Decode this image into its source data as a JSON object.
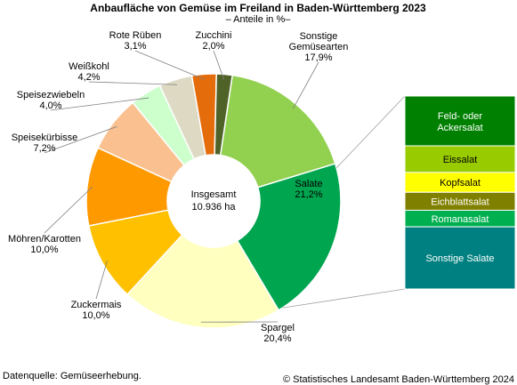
{
  "chart_data": {
    "type": "pie",
    "style": "donut",
    "title": "Anbaufläche von Gemüse im Freiland in Baden-Württemberg 2023",
    "subtitle": "– Anteile in %–",
    "center_label": {
      "line1": "Insgesamt",
      "line2": "10.936 ha"
    },
    "slices": [
      {
        "name": "Sonstige\nGemüsearten",
        "value": 17.9,
        "display": "17,9%",
        "color": "#92d050"
      },
      {
        "name": "Salate",
        "value": 21.2,
        "display": "21,2%",
        "color": "#00a550"
      },
      {
        "name": "Spargel",
        "value": 20.4,
        "display": "20,4%",
        "color": "#ffffc0"
      },
      {
        "name": "Zuckermais",
        "value": 10.0,
        "display": "10,0%",
        "color": "#ffc000"
      },
      {
        "name": "Möhren/Karotten",
        "value": 10.0,
        "display": "10,0%",
        "color": "#ff9900"
      },
      {
        "name": "Speisekürbisse",
        "value": 7.2,
        "display": "7,2%",
        "color": "#fac090"
      },
      {
        "name": "Speisezwiebeln",
        "value": 4.0,
        "display": "4,0%",
        "color": "#ccffcc"
      },
      {
        "name": "Weißkohl",
        "value": 4.2,
        "display": "4,2%",
        "color": "#ddd9c3"
      },
      {
        "name": "Rote Rüben",
        "value": 3.1,
        "display": "3,1%",
        "color": "#e46c0a"
      },
      {
        "name": "Zucchini",
        "value": 2.0,
        "display": "2,0%",
        "color": "#4f6228"
      }
    ],
    "breakdown": {
      "of": "Salate",
      "segments": [
        {
          "name": "Feld- oder\nAckersalat",
          "color": "#008000",
          "text_color": "#ffffff",
          "share": 0.258
        },
        {
          "name": "Eissalat",
          "color": "#99cc00",
          "text_color": "#000000",
          "share": 0.138
        },
        {
          "name": "Kopfsalat",
          "color": "#ffff00",
          "text_color": "#000000",
          "share": 0.103
        },
        {
          "name": "Eichblattsalat",
          "color": "#808000",
          "text_color": "#ffffff",
          "share": 0.093
        },
        {
          "name": "Romanasalat",
          "color": "#00b050",
          "text_color": "#ffffff",
          "share": 0.086
        },
        {
          "name": "Sonstige Salate",
          "color": "#008080",
          "text_color": "#ffffff",
          "share": 0.322
        }
      ]
    }
  },
  "footer": {
    "source": "Datenquelle: Gemüseerhebung.",
    "copyright": "© Statistisches Landesamt Baden-Württemberg 2024"
  }
}
